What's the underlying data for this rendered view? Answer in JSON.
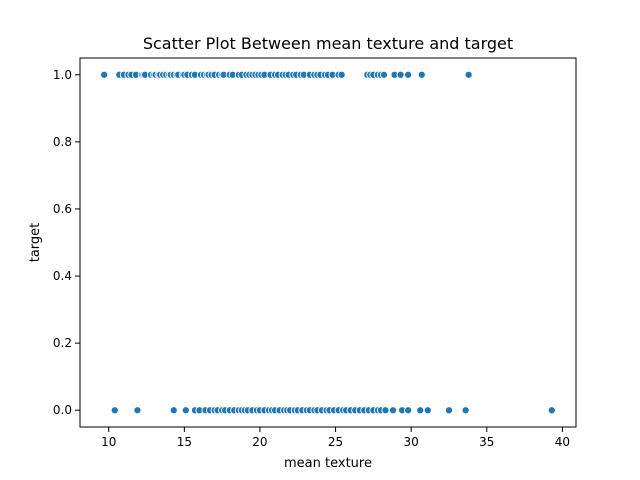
{
  "chart_data": {
    "type": "scatter",
    "title": "Scatter Plot Between mean texture and target",
    "xlabel": "mean texture",
    "ylabel": "target",
    "xlim": [
      8.1,
      40.9
    ],
    "ylim": [
      -0.05,
      1.05
    ],
    "xticks": [
      10,
      15,
      20,
      25,
      30,
      35,
      40
    ],
    "yticks": [
      0.0,
      0.2,
      0.4,
      0.6,
      0.8,
      1.0
    ],
    "grid": false,
    "legend": "none",
    "point_color": "#1f77b4",
    "series": [
      {
        "x": [
          9.7,
          10.7,
          11.0,
          11.3,
          11.5,
          11.8,
          12.2,
          12.3,
          12.4,
          12.8,
          13.0,
          13.1,
          13.3,
          13.4,
          13.6,
          13.8,
          14.0,
          14.1,
          14.3,
          14.5,
          14.6,
          14.9,
          15.0,
          15.2,
          15.5,
          15.7,
          16.1,
          16.3,
          16.5,
          16.6,
          16.8,
          17.0,
          17.3,
          17.5,
          17.6,
          18.0,
          18.2,
          18.6,
          18.8,
          19.1,
          19.3,
          19.5,
          19.7,
          19.9,
          20.1,
          20.3,
          20.7,
          21.0,
          21.2,
          21.5,
          21.7,
          21.9,
          22.2,
          22.4,
          22.7,
          22.9,
          23.3,
          23.6,
          23.8,
          24.0,
          24.3,
          24.5,
          24.8,
          25.2,
          25.4,
          27.1,
          27.3,
          27.5,
          27.8,
          28.0,
          28.2,
          28.9,
          29.3,
          29.8,
          30.7,
          33.8
        ],
        "y": [
          1,
          1,
          1,
          1,
          1,
          1,
          1,
          1,
          1,
          1,
          1,
          1,
          1,
          1,
          1,
          1,
          1,
          1,
          1,
          1,
          1,
          1,
          1,
          1,
          1,
          1,
          1,
          1,
          1,
          1,
          1,
          1,
          1,
          1,
          1,
          1,
          1,
          1,
          1,
          1,
          1,
          1,
          1,
          1,
          1,
          1,
          1,
          1,
          1,
          1,
          1,
          1,
          1,
          1,
          1,
          1,
          1,
          1,
          1,
          1,
          1,
          1,
          1,
          1,
          1,
          1,
          1,
          1,
          1,
          1,
          1,
          1,
          1,
          1,
          1,
          1
        ]
      },
      {
        "x": [
          10.4,
          11.9,
          14.3,
          15.1,
          15.7,
          16.0,
          16.4,
          16.7,
          17.0,
          17.2,
          17.5,
          17.7,
          18.0,
          18.3,
          18.6,
          18.8,
          19.0,
          19.2,
          19.5,
          19.8,
          20.0,
          20.3,
          20.6,
          20.8,
          21.0,
          21.3,
          21.6,
          21.8,
          22.0,
          22.3,
          22.5,
          22.8,
          23.1,
          23.3,
          23.6,
          23.8,
          24.1,
          24.4,
          24.6,
          24.9,
          25.2,
          25.5,
          25.7,
          26.0,
          26.3,
          26.6,
          26.9,
          27.2,
          27.5,
          27.8,
          28.0,
          28.3,
          28.8,
          29.4,
          29.8,
          30.6,
          31.1,
          32.5,
          33.6,
          39.3
        ],
        "y": [
          0,
          0,
          0,
          0,
          0,
          0,
          0,
          0,
          0,
          0,
          0,
          0,
          0,
          0,
          0,
          0,
          0,
          0,
          0,
          0,
          0,
          0,
          0,
          0,
          0,
          0,
          0,
          0,
          0,
          0,
          0,
          0,
          0,
          0,
          0,
          0,
          0,
          0,
          0,
          0,
          0,
          0,
          0,
          0,
          0,
          0,
          0,
          0,
          0,
          0,
          0,
          0,
          0,
          0,
          0,
          0,
          0,
          0,
          0,
          0
        ]
      }
    ]
  }
}
